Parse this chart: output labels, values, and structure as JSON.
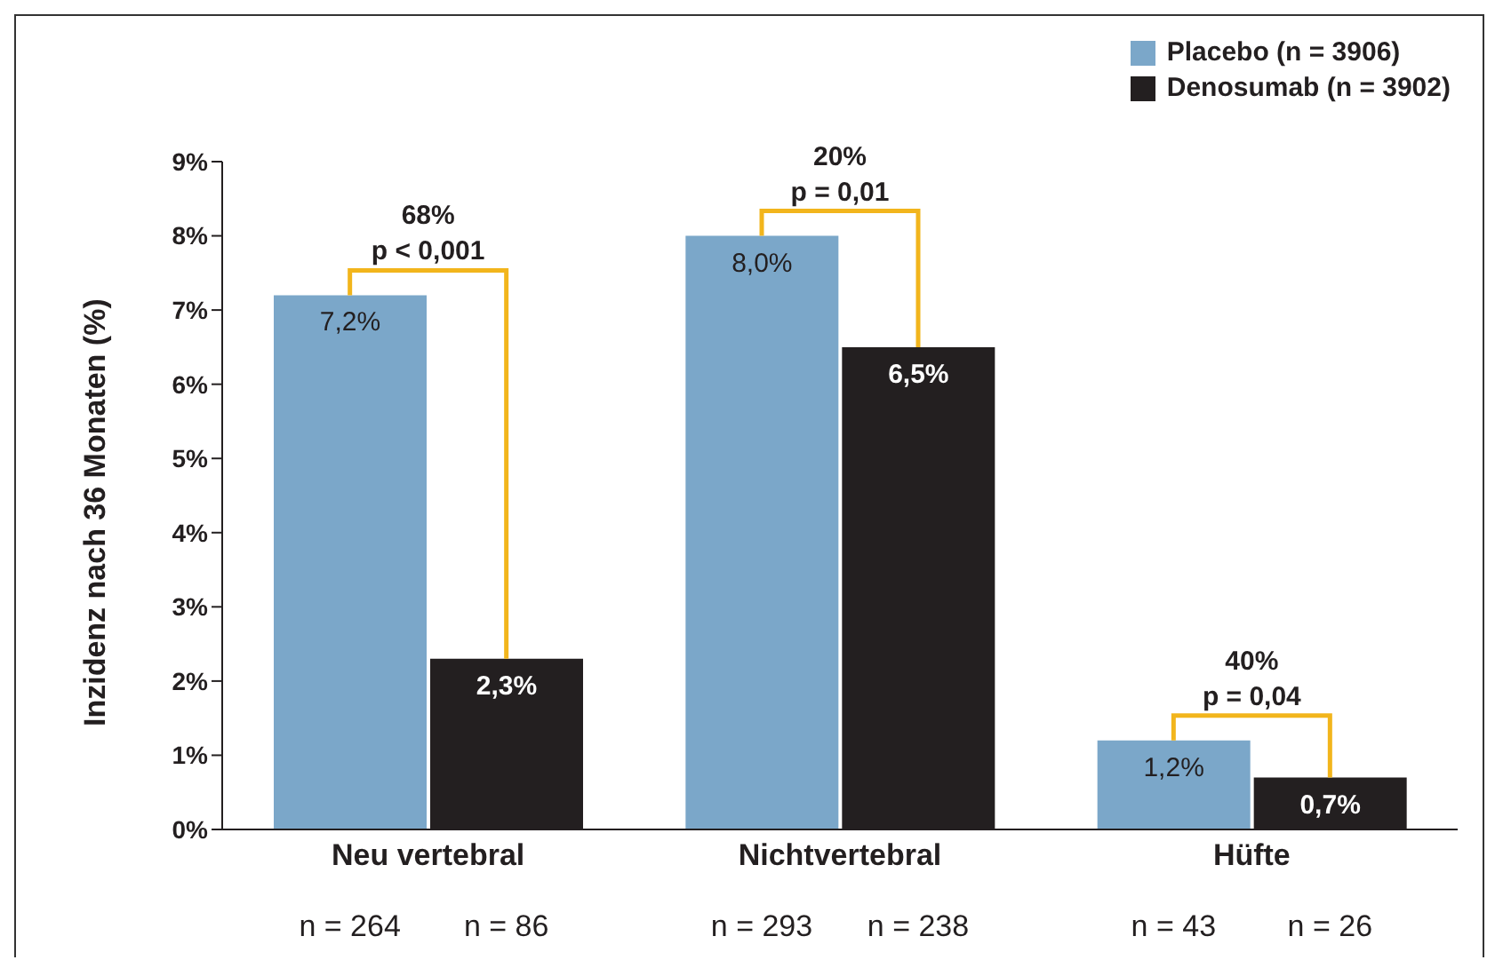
{
  "chart_data": {
    "type": "bar",
    "ylabel": "Inzidenz nach 36 Monaten (%)",
    "categories": [
      "Neu vertebral",
      "Nichtvertebral",
      "Hüfte"
    ],
    "series": [
      {
        "name": "Placebo (n = 3906)",
        "color": "#7ba7c9",
        "values": [
          7.2,
          8.0,
          1.2
        ],
        "value_labels": [
          "7,2%",
          "8,0%",
          "1,2%"
        ]
      },
      {
        "name": "Denosumab (n = 3902)",
        "color": "#231f20",
        "values": [
          2.3,
          6.5,
          0.7
        ],
        "value_labels": [
          "2,3%",
          "6,5%",
          "0,7%"
        ]
      }
    ],
    "ylim": [
      0,
      9
    ],
    "yticks": [
      {
        "value": 0,
        "label": "0%"
      },
      {
        "value": 1,
        "label": "1%"
      },
      {
        "value": 2,
        "label": "2%"
      },
      {
        "value": 3,
        "label": "3%"
      },
      {
        "value": 4,
        "label": "4%"
      },
      {
        "value": 5,
        "label": "5%"
      },
      {
        "value": 6,
        "label": "6%"
      },
      {
        "value": 7,
        "label": "7%"
      },
      {
        "value": 8,
        "label": "8%"
      },
      {
        "value": 9,
        "label": "9%"
      }
    ],
    "legend": "top right",
    "annotations": [
      "68%",
      "p < 0,001",
      "n = 264",
      "n = 86",
      "20%",
      "p = 0,01",
      "n = 293",
      "n = 238",
      "40%",
      "p = 0,04",
      "n = 43",
      "n = 26"
    ]
  }
}
